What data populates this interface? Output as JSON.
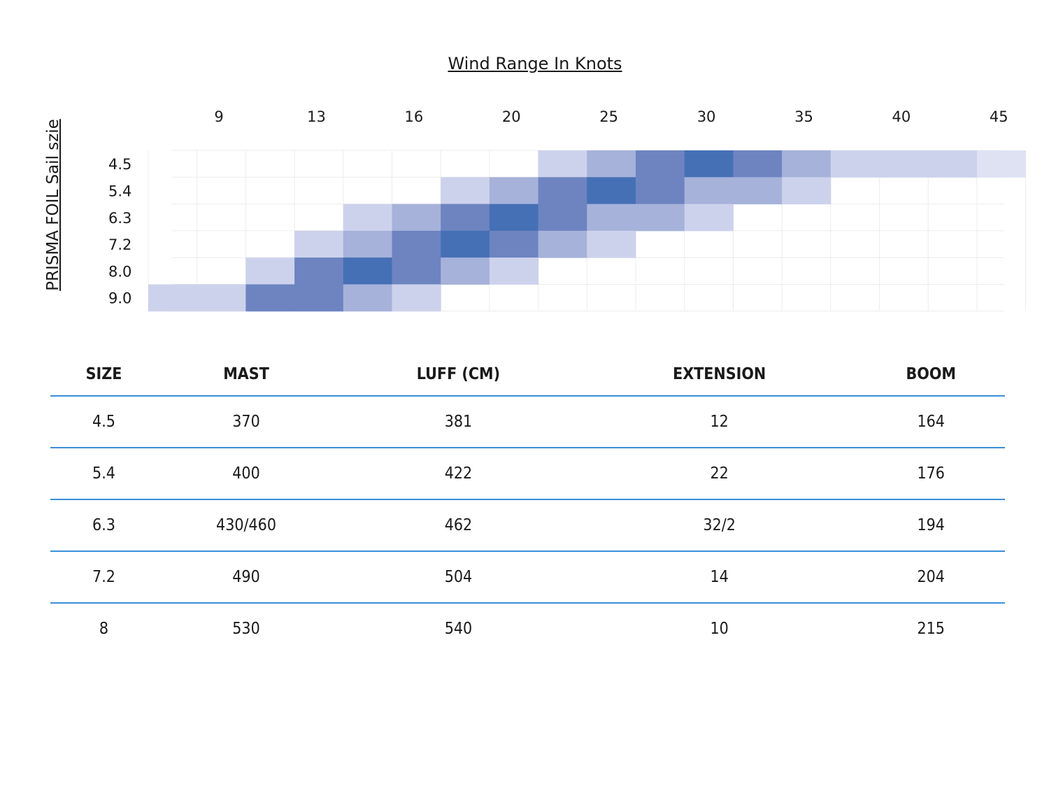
{
  "chart_data": {
    "type": "heatmap",
    "title": "Wind Range In Knots",
    "ylabel": "PRISMA FOIL Sail szie",
    "x_tick_labels": [
      "9",
      "13",
      "16",
      "20",
      "25",
      "30",
      "35",
      "40",
      "45"
    ],
    "rows": [
      "4.5",
      "5.4",
      "6.3",
      "7.2",
      "8.0",
      "9.0"
    ],
    "levels_note": "intensity 0-4 (0 = empty, 4 = darkest); columns are the 18 grid cells left to right",
    "intensity": [
      [
        0,
        0,
        0,
        0,
        0,
        0,
        0,
        0,
        1,
        2,
        3,
        4,
        3,
        2,
        1,
        1,
        1,
        0.5
      ],
      [
        0,
        0,
        0,
        0,
        0,
        0,
        1,
        2,
        3,
        4,
        3,
        2,
        2,
        1,
        0,
        0,
        0,
        0
      ],
      [
        0,
        0,
        0,
        0,
        1,
        2,
        3,
        4,
        3,
        2,
        2,
        1,
        0,
        0,
        0,
        0,
        0,
        0
      ],
      [
        0,
        0,
        0,
        1,
        2,
        3,
        4,
        3,
        2,
        1,
        0,
        0,
        0,
        0,
        0,
        0,
        0,
        0
      ],
      [
        0,
        0,
        1,
        3,
        4,
        3,
        2,
        1,
        0,
        0,
        0,
        0,
        0,
        0,
        0,
        0,
        0,
        0
      ],
      [
        1,
        1,
        3,
        3,
        2,
        1,
        0,
        0,
        0,
        0,
        0,
        0,
        0,
        0,
        0,
        0,
        0,
        0
      ]
    ],
    "colors": [
      "#ffffff",
      "#cdd2ec",
      "#a6b2da",
      "#6d84c0",
      "#4570b6",
      "#dfe2f3"
    ]
  },
  "spec_table": {
    "headers": [
      "SIZE",
      "MAST",
      "LUFF (CM)",
      "EXTENSION",
      "BOOM"
    ],
    "rows": [
      [
        "4.5",
        "370",
        "381",
        "12",
        "164"
      ],
      [
        "5.4",
        "400",
        "422",
        "22",
        "176"
      ],
      [
        "6.3",
        "430/460",
        "462",
        "32/2",
        "194"
      ],
      [
        "7.2",
        "490",
        "504",
        "14",
        "204"
      ],
      [
        "8",
        "530",
        "540",
        "10",
        "215"
      ]
    ],
    "line_color": "#3a8fd9"
  }
}
